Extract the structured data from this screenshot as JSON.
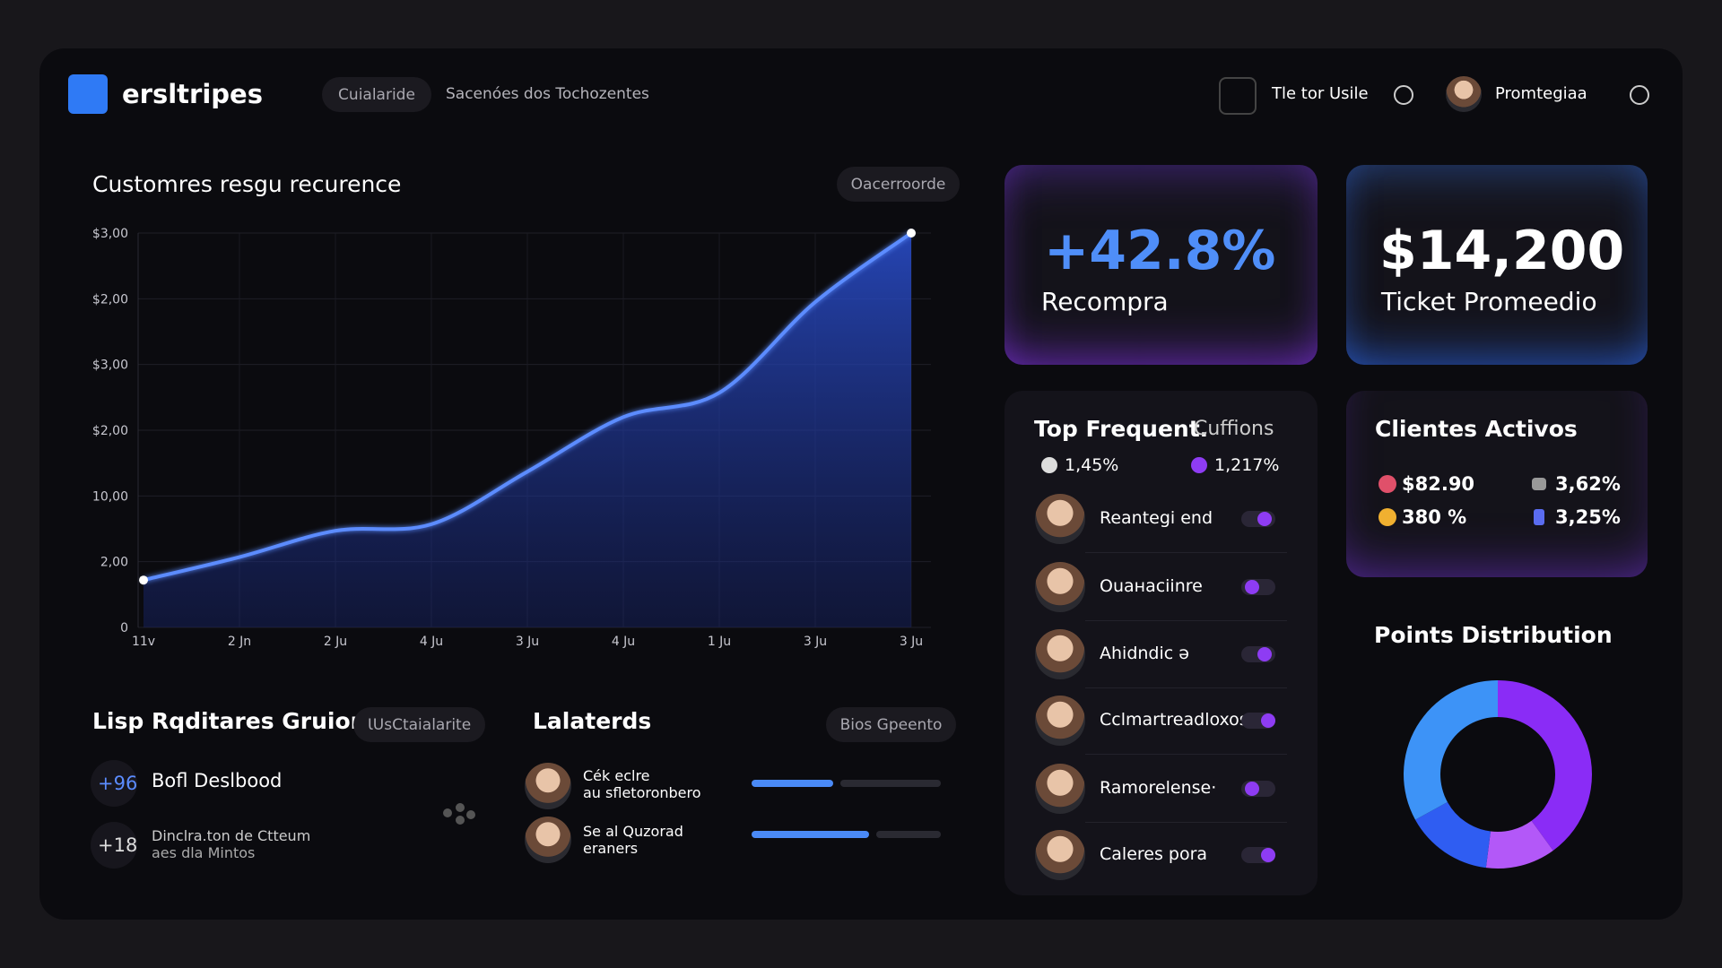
{
  "header": {
    "brand": "ersltripes",
    "nav": [
      "Cuialaride",
      "Sacenóes dos Tochozentes"
    ],
    "tool": "Tle tor Usile",
    "user": "Promtegiaa"
  },
  "chart_data": [
    {
      "type": "line",
      "title": "Customres resgu recurence",
      "filter": "Oacerroorde",
      "categories": [
        "11v",
        "2 Jn",
        "2 Ju",
        "4 Ju",
        "3 Ju",
        "4 Ju",
        "1 Ju",
        "3 Ju",
        "3 Ju"
      ],
      "values": [
        0.72,
        1.07,
        1.47,
        1.57,
        2.37,
        3.2,
        3.57,
        4.95,
        6
      ],
      "color": "#5b8cff",
      "ylim": [
        0,
        6
      ],
      "yticks": [
        0,
        {
          "value": 1,
          "label": "2,00"
        },
        {
          "value": 2,
          "label": "10,00"
        },
        {
          "value": 3,
          "label": "$2,00"
        },
        {
          "value": 4,
          "label": "$3,00"
        },
        {
          "value": 5,
          "label": "$2,00"
        },
        {
          "value": 6,
          "label": "$3,00"
        }
      ],
      "grid": true
    },
    {
      "type": "donut",
      "title": "Points Distribution",
      "values": [
        40,
        12,
        15,
        33
      ],
      "colors": [
        "#8a2cf6",
        "#b358f8",
        "#2f5df2",
        "#3d93f7"
      ]
    }
  ],
  "kpis": [
    {
      "value": "+42.8%",
      "label": "Recompra"
    },
    {
      "value": "$14,200",
      "label": "Ticket Promeedio"
    }
  ],
  "top_frequent": {
    "title": "Top Frequent.",
    "subtitle": "Cuffions",
    "legend": [
      "1,45%",
      "1,217%"
    ],
    "items": [
      "Reantegi end",
      "Ouaнaciinre",
      "Ahidndic ǝ",
      "Cclmartreadloxos",
      "Ramorelense·",
      "Caleres pora"
    ]
  },
  "clientes": {
    "title": "Clientes Activos",
    "stats": [
      "$82.90",
      "3,62%",
      "380 %",
      "3,25%"
    ]
  },
  "groups": {
    "title": "Lisp Rqditares Gruion",
    "filter": "ƖUsCtaialarite",
    "items": [
      {
        "badge": "+96",
        "lines": [
          "Bofl Deslbood"
        ]
      },
      {
        "badge": "+18",
        "lines": [
          "Dinclra.ton de Ctteum",
          "aes dla Mintos"
        ]
      }
    ]
  },
  "laterals": {
    "title": "Lalaterds",
    "filter": "Bios Gpeento",
    "items": [
      {
        "lines": [
          "Cék eclre",
          "au sfletoronbero"
        ],
        "progress": 43
      },
      {
        "lines": [
          "Se al Quzorad",
          "eraners"
        ],
        "progress": 62
      }
    ]
  }
}
